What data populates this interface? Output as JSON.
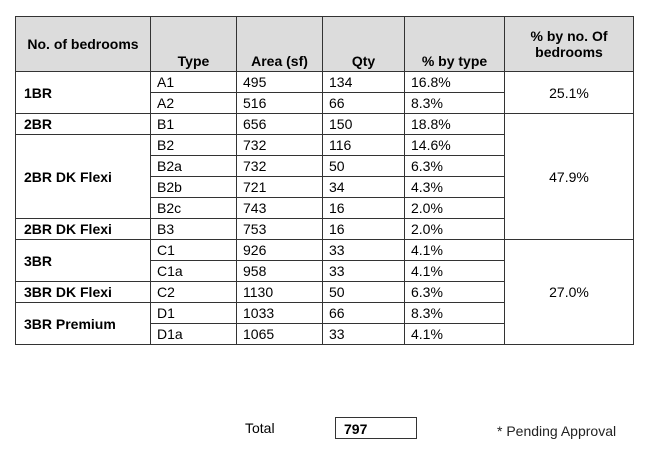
{
  "headers": {
    "bedrooms": "No. of bedrooms",
    "type": "Type",
    "area": "Area (sf)",
    "qty": "Qty",
    "pct_type": "% by type",
    "pct_bedrooms": "% by no. Of bedrooms"
  },
  "groups": {
    "g1": "1BR",
    "g2": "2BR",
    "g3": "2BR DK Flexi",
    "g4": "2BR DK Flexi",
    "g5": "3BR",
    "g6": "3BR DK Flexi",
    "g7": "3BR Premium"
  },
  "rows": [
    {
      "type": "A1",
      "area": "495",
      "qty": "134",
      "pct": "16.8%"
    },
    {
      "type": "A2",
      "area": "516",
      "qty": "66",
      "pct": "8.3%"
    },
    {
      "type": "B1",
      "area": "656",
      "qty": "150",
      "pct": "18.8%"
    },
    {
      "type": "B2",
      "area": "732",
      "qty": "116",
      "pct": "14.6%"
    },
    {
      "type": "B2a",
      "area": "732",
      "qty": "50",
      "pct": "6.3%"
    },
    {
      "type": "B2b",
      "area": "721",
      "qty": "34",
      "pct": "4.3%"
    },
    {
      "type": "B2c",
      "area": "743",
      "qty": "16",
      "pct": "2.0%"
    },
    {
      "type": "B3",
      "area": "753",
      "qty": "16",
      "pct": "2.0%"
    },
    {
      "type": "C1",
      "area": "926",
      "qty": "33",
      "pct": "4.1%"
    },
    {
      "type": "C1a",
      "area": "958",
      "qty": "33",
      "pct": "4.1%"
    },
    {
      "type": "C2",
      "area": "1130",
      "qty": "50",
      "pct": "6.3%"
    },
    {
      "type": "D1",
      "area": "1033",
      "qty": "66",
      "pct": "8.3%"
    },
    {
      "type": "D1a",
      "area": "1065",
      "qty": "33",
      "pct": "4.1%"
    }
  ],
  "bedroom_pct": {
    "p1": "25.1%",
    "p2": "47.9%",
    "p3": "27.0%"
  },
  "total": {
    "label": "Total",
    "value": "797"
  },
  "footnote": "* Pending Approval"
}
